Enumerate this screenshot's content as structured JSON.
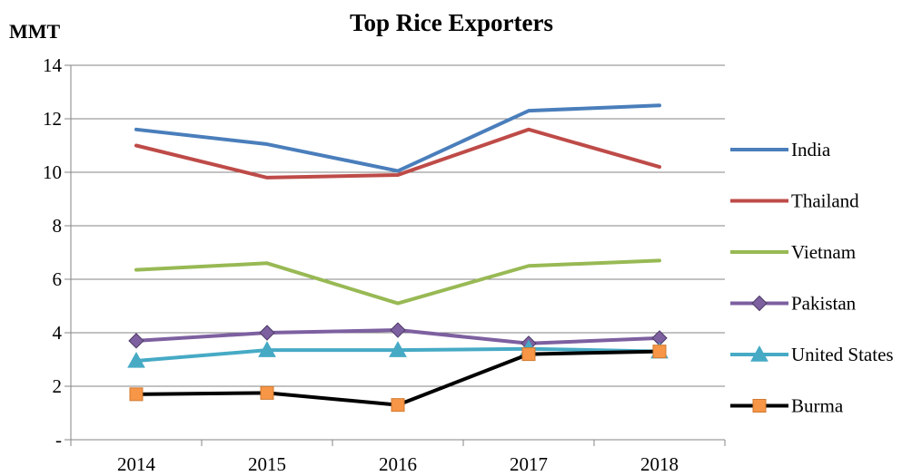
{
  "chart_data": {
    "type": "line",
    "title": "Top Rice Exporters",
    "ylabel": "MMT",
    "xlabel": "",
    "categories": [
      "2014",
      "2015",
      "2016",
      "2017",
      "2018"
    ],
    "ylim": [
      0,
      14
    ],
    "yticks": [
      0,
      2,
      4,
      6,
      8,
      10,
      12,
      14
    ],
    "ytick_labels": [
      "-",
      "2",
      "4",
      "6",
      "8",
      "10",
      "12",
      "14"
    ],
    "grid": true,
    "legend_position": "right",
    "series": [
      {
        "name": "India",
        "color": "#4a7ebb",
        "marker": "none",
        "values": [
          11.6,
          11.05,
          10.05,
          12.3,
          12.5
        ]
      },
      {
        "name": "Thailand",
        "color": "#be4b48",
        "marker": "none",
        "values": [
          11.0,
          9.8,
          9.9,
          11.6,
          10.2
        ]
      },
      {
        "name": "Vietnam",
        "color": "#98b954",
        "marker": "none",
        "values": [
          6.35,
          6.6,
          5.1,
          6.5,
          6.7
        ]
      },
      {
        "name": "Pakistan",
        "color": "#7d60a0",
        "marker": "diamond",
        "values": [
          3.7,
          4.0,
          4.1,
          3.6,
          3.8
        ]
      },
      {
        "name": "United States",
        "color": "#46aac5",
        "marker": "triangle",
        "values": [
          2.95,
          3.35,
          3.35,
          3.4,
          3.3
        ]
      },
      {
        "name": "Burma",
        "color": "#000000",
        "marker": "square",
        "marker_color": "#f79646",
        "values": [
          1.7,
          1.75,
          1.3,
          3.2,
          3.3
        ]
      }
    ]
  }
}
